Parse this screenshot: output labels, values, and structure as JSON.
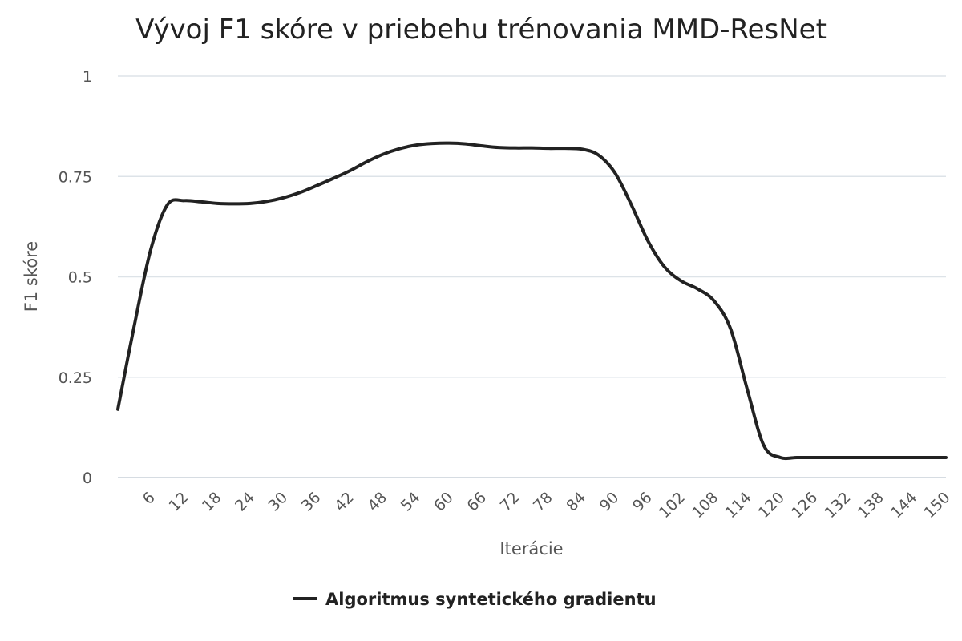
{
  "chart_data": {
    "type": "line",
    "title": "Vývoj F1 skóre v priebehu trénovania MMD-ResNet",
    "xlabel": "Iterácie",
    "ylabel": "F1 skóre",
    "x_ticks": [
      "6",
      "12",
      "18",
      "24",
      "30",
      "36",
      "42",
      "48",
      "54",
      "60",
      "66",
      "72",
      "78",
      "84",
      "90",
      "96",
      "102",
      "108",
      "114",
      "120",
      "126",
      "132",
      "138",
      "144",
      "150"
    ],
    "y_ticks": [
      "0",
      "0.25",
      "0.5",
      "0.75",
      "1"
    ],
    "xlim": [
      0,
      150
    ],
    "ylim": [
      0,
      1
    ],
    "grid": true,
    "legend_position": "bottom-center",
    "series": [
      {
        "name": "Algoritmus syntetického gradientu",
        "color": "#222222",
        "x": [
          0,
          3,
          6,
          9,
          12,
          15,
          18,
          21,
          24,
          27,
          30,
          33,
          36,
          39,
          42,
          45,
          48,
          51,
          54,
          57,
          60,
          63,
          66,
          69,
          72,
          75,
          78,
          81,
          84,
          87,
          90,
          93,
          96,
          99,
          102,
          105,
          108,
          111,
          114,
          117,
          120,
          123,
          126,
          129,
          132,
          135,
          138,
          141,
          144,
          147,
          150
        ],
        "y": [
          0.17,
          0.38,
          0.57,
          0.68,
          0.69,
          0.687,
          0.683,
          0.682,
          0.683,
          0.688,
          0.697,
          0.71,
          0.727,
          0.745,
          0.764,
          0.786,
          0.805,
          0.819,
          0.828,
          0.832,
          0.833,
          0.831,
          0.826,
          0.822,
          0.821,
          0.821,
          0.82,
          0.82,
          0.818,
          0.804,
          0.76,
          0.68,
          0.59,
          0.525,
          0.49,
          0.47,
          0.44,
          0.37,
          0.22,
          0.08,
          0.05,
          0.05,
          0.05,
          0.05,
          0.05,
          0.05,
          0.05,
          0.05,
          0.05,
          0.05,
          0.05
        ]
      }
    ]
  }
}
